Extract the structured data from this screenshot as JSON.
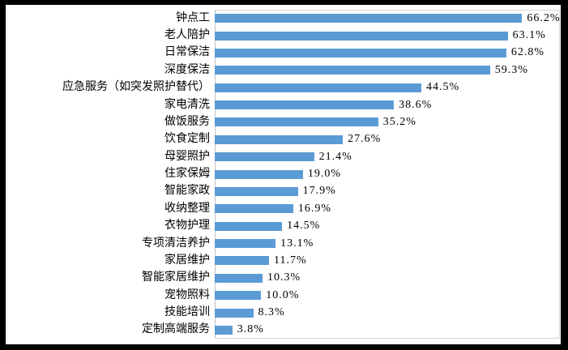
{
  "chart_data": {
    "type": "bar",
    "orientation": "horizontal",
    "title": "",
    "xlabel": "",
    "ylabel": "",
    "x_axis_ticks_visible": false,
    "grid": false,
    "legend": false,
    "bar_color": "#5b9bd5",
    "plot_border_color": "#d4d4d4",
    "axis_line_color": "#bfbfbf",
    "frame_color": "#000000",
    "background_color": "#ffffff",
    "xlim": [
      0,
      74
    ],
    "categories": [
      "钟点工",
      "老人陪护",
      "日常保洁",
      "深度保洁",
      "应急服务（如突发照护替代）",
      "家电清洗",
      "做饭服务",
      "饮食定制",
      "母婴照护",
      "住家保姆",
      "智能家政",
      "收纳整理",
      "衣物护理",
      "专项清洁养护",
      "家居维护",
      "智能家居维护",
      "宠物照料",
      "技能培训",
      "定制高端服务"
    ],
    "values": [
      66.2,
      63.1,
      62.8,
      59.3,
      44.5,
      38.6,
      35.2,
      27.6,
      21.4,
      19.0,
      17.9,
      16.9,
      14.5,
      13.1,
      11.7,
      10.3,
      10.0,
      8.3,
      3.8
    ],
    "value_labels": [
      "66.2%",
      "63.1%",
      "62.8%",
      "59.3%",
      "44.5%",
      "38.6%",
      "35.2%",
      "27.6%",
      "21.4%",
      "19.0%",
      "17.9%",
      "16.9%",
      "14.5%",
      "13.1%",
      "11.7%",
      "10.3%",
      "10.0%",
      "8.3%",
      "3.8%"
    ]
  }
}
